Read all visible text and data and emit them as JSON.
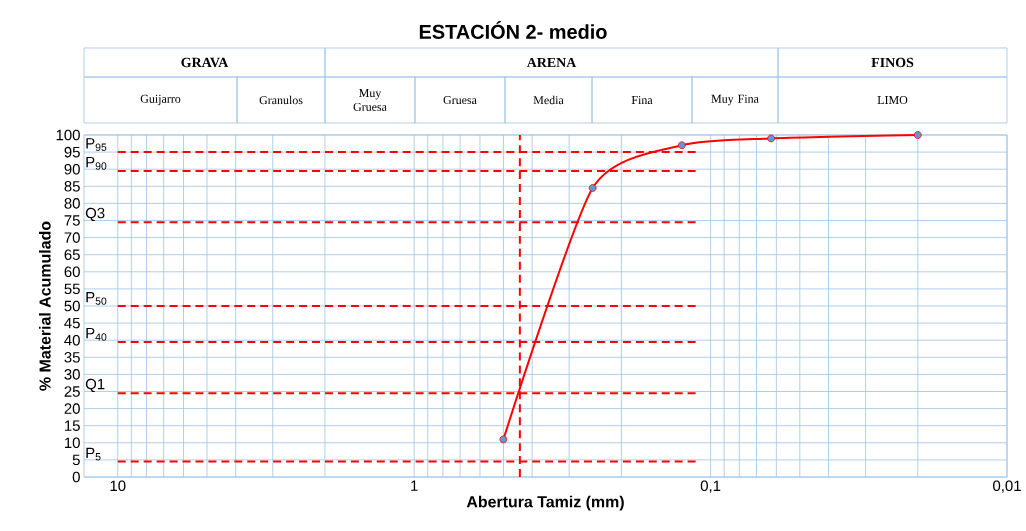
{
  "chart_data": {
    "type": "line",
    "title": "ESTACIÓN 2- medio",
    "xlabel": "Abertura Tamiz (mm)",
    "ylabel": "% Material Acumulado",
    "series": [
      {
        "color": "#ff0000",
        "x": [
          0.5,
          0.25,
          0.125,
          0.0625,
          0.02
        ],
        "values": [
          11,
          84.5,
          97,
          99,
          100
        ]
      }
    ],
    "log": "x",
    "xlim": [
      13,
      0.01
    ],
    "ylim": [
      0,
      100
    ],
    "xticks": [
      {
        "value": 10,
        "label": "10"
      },
      {
        "value": 1,
        "label": "1"
      },
      {
        "value": 0.1,
        "label": "0,1"
      },
      {
        "value": 0.01,
        "label": "0,01"
      }
    ],
    "yticks": [
      0,
      5,
      10,
      15,
      20,
      25,
      30,
      35,
      40,
      45,
      50,
      55,
      60,
      65,
      70,
      75,
      80,
      85,
      90,
      95,
      100
    ],
    "grid": true,
    "marker": "circle",
    "ref_lines": [
      {
        "axis": "y",
        "value": 95,
        "label": "P$_{95}$",
        "color": "#ff0000",
        "line_style": "dashed"
      },
      {
        "axis": "y",
        "value": 89.5,
        "label": "P$_{90}$",
        "color": "#ff0000",
        "line_style": "dashed"
      },
      {
        "axis": "y",
        "value": 74.5,
        "label": "Q3",
        "color": "#ff0000",
        "line_style": "dashed"
      },
      {
        "axis": "y",
        "value": 50,
        "label": "P$_{50}$",
        "color": "#ff0000",
        "line_style": "dashed"
      },
      {
        "axis": "y",
        "value": 39.5,
        "label": "P$_{40}$",
        "color": "#ff0000",
        "line_style": "dashed"
      },
      {
        "axis": "y",
        "value": 24.5,
        "label": "Q1",
        "color": "#ff0000",
        "line_style": "dashed"
      },
      {
        "axis": "y",
        "value": 4.5,
        "label": "P$_{5}$",
        "color": "#ff0000",
        "line_style": "dashed"
      },
      {
        "axis": "x",
        "value": 0.44,
        "color": "#ff0000",
        "line_style": "dashed"
      }
    ],
    "annotations": [
      "GRAVA",
      "ARENA",
      "FINOS",
      "Guijarro",
      "Granulos",
      "Muy Gruesa",
      "Gruesa",
      "Media",
      "Fina",
      "Muy Fina",
      "LIMO"
    ]
  }
}
